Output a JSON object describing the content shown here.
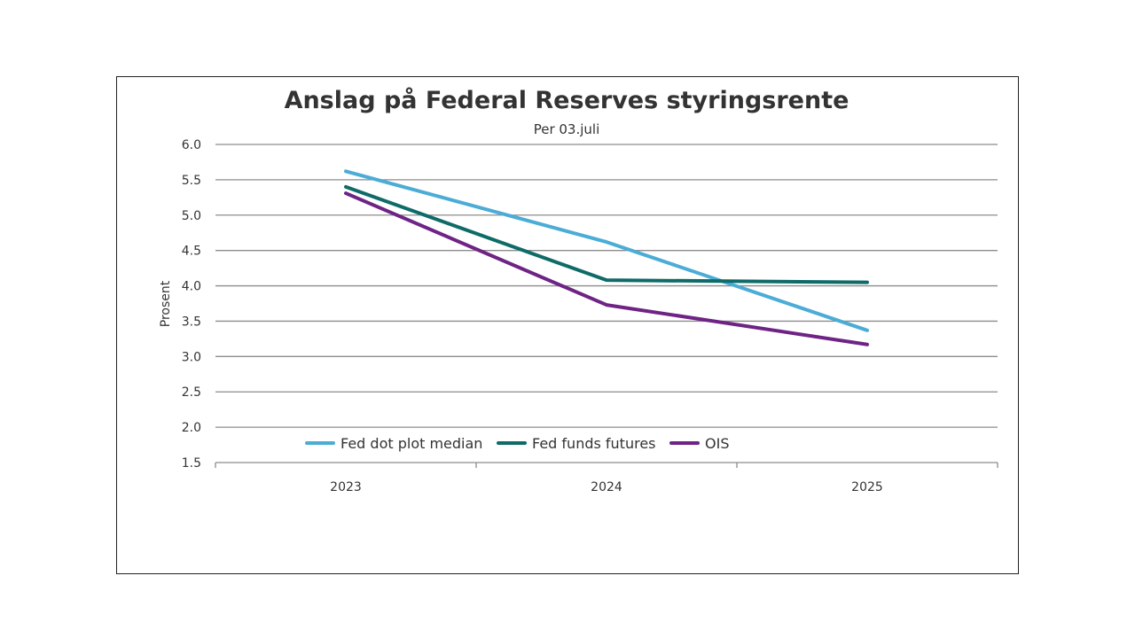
{
  "chart_data": {
    "type": "line",
    "title": "Anslag på Federal Reserves styringsrente",
    "subtitle": "Per 03.juli",
    "xlabel": "",
    "ylabel": "Prosent",
    "ylim": [
      1.5,
      6.0
    ],
    "yticks": [
      "6.0",
      "5.5",
      "5.0",
      "4.5",
      "4.0",
      "3.5",
      "3.0",
      "2.5",
      "2.0",
      "1.5"
    ],
    "categories": [
      "2023",
      "2024",
      "2025"
    ],
    "grid": true,
    "legend_position": "bottom-left",
    "series": [
      {
        "name": "Fed dot plot median",
        "color": "#4bacd6",
        "values": [
          5.62,
          4.62,
          3.37
        ]
      },
      {
        "name": "Fed funds futures",
        "color": "#0e6b68",
        "values": [
          5.4,
          4.08,
          4.05
        ]
      },
      {
        "name": "OIS",
        "color": "#6e2385",
        "values": [
          5.31,
          3.73,
          3.17
        ]
      }
    ]
  }
}
